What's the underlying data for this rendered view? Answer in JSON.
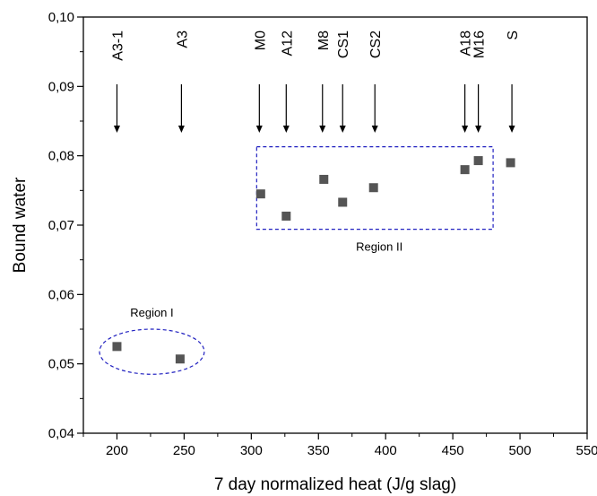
{
  "chart_data": {
    "type": "scatter",
    "xlabel": "7 day normalized heat (J/g slag)",
    "ylabel": "Bound water",
    "xlim": [
      175,
      550
    ],
    "ylim": [
      0.04,
      0.1
    ],
    "x_ticks": [
      "200",
      "250",
      "300",
      "350",
      "400",
      "450",
      "500",
      "550"
    ],
    "y_ticks": [
      "0,04",
      "0,05",
      "0,06",
      "0,07",
      "0,08",
      "0,09",
      "0,10"
    ],
    "points": [
      {
        "x": 200,
        "y": 0.0525
      },
      {
        "x": 247,
        "y": 0.0507
      },
      {
        "x": 307,
        "y": 0.0745
      },
      {
        "x": 326,
        "y": 0.0713
      },
      {
        "x": 354,
        "y": 0.0766
      },
      {
        "x": 368,
        "y": 0.0733
      },
      {
        "x": 391,
        "y": 0.0754
      },
      {
        "x": 459,
        "y": 0.078
      },
      {
        "x": 469,
        "y": 0.0793
      },
      {
        "x": 493,
        "y": 0.079
      }
    ],
    "sample_labels": [
      {
        "text": "A3-1",
        "x": 200
      },
      {
        "text": "A3",
        "x": 248
      },
      {
        "text": "M0",
        "x": 306
      },
      {
        "text": "A12",
        "x": 326
      },
      {
        "text": "M8",
        "x": 353
      },
      {
        "text": "CS1",
        "x": 368
      },
      {
        "text": "CS2",
        "x": 392
      },
      {
        "text": "A18",
        "x": 459
      },
      {
        "text": "M16",
        "x": 469
      },
      {
        "text": "S",
        "x": 494
      }
    ],
    "regions": [
      {
        "label": "Region I",
        "shape": "ellipse",
        "x_range": [
          187,
          265
        ],
        "y_range": [
          0.0485,
          0.055
        ]
      },
      {
        "label": "Region II",
        "shape": "rectangle",
        "x_range": [
          304,
          480
        ],
        "y_range": [
          0.0694,
          0.0813
        ]
      }
    ],
    "marker_color": "#555555",
    "region_color": "#2020c0",
    "grid": false
  }
}
